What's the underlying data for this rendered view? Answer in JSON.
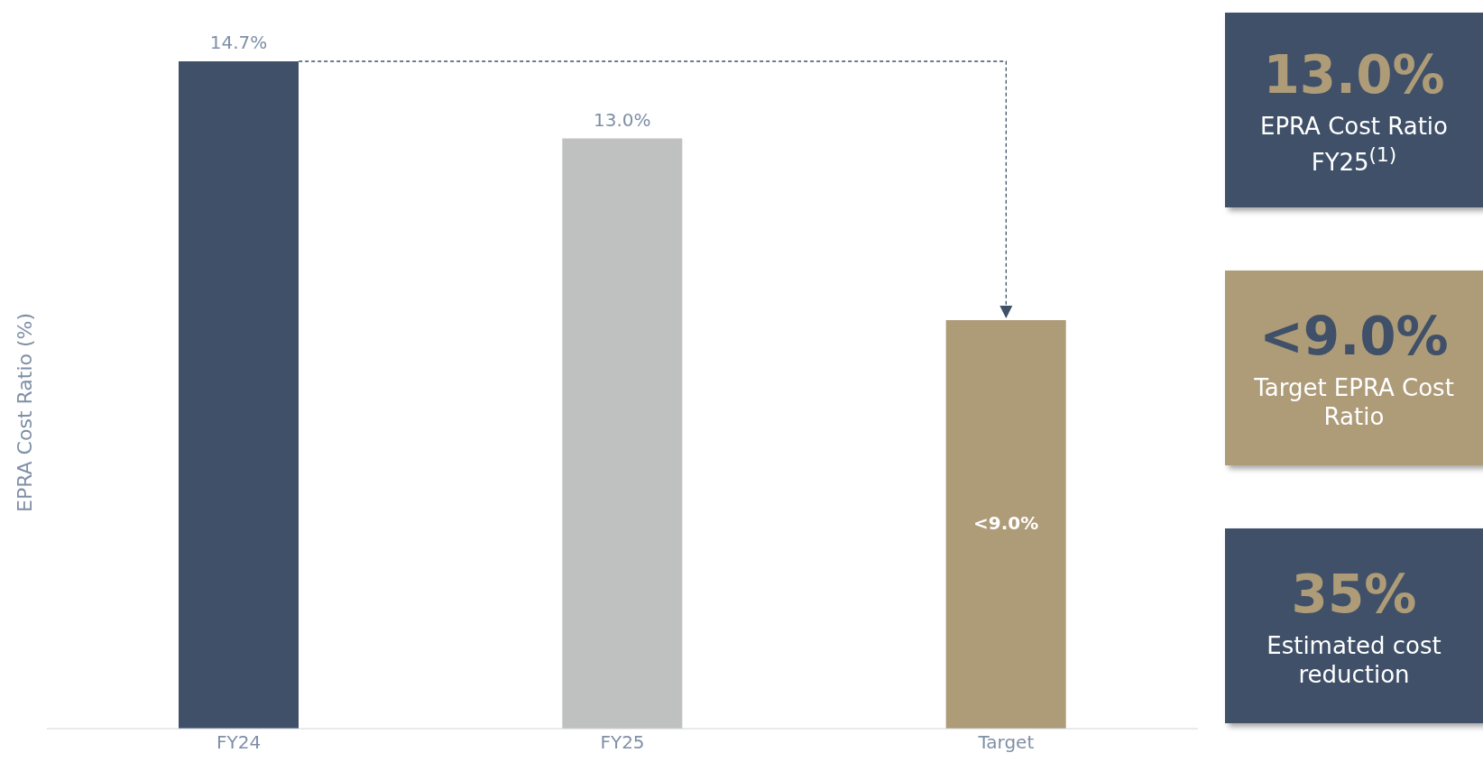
{
  "chart_data": [
    {
      "type": "bar",
      "ylabel": "EPRA Cost Ratio (%)",
      "categories": [
        "FY24",
        "FY25",
        "Target"
      ],
      "values": [
        14.7,
        13.0,
        9.0
      ],
      "colors": [
        "#3f5068",
        "#bfc1c0",
        "#ae9b78"
      ],
      "value_labels": [
        "14.7%",
        "13.0%",
        "<9.0%"
      ],
      "grid": false,
      "legend": false
    },
    {
      "type": "other",
      "annotations": [
        "13.0%",
        "EPRA Cost Ratio FY25$^{(1)}$",
        "<9.0%",
        "Target EPRA Cost Ratio",
        "35%",
        "Estimated cost reduction"
      ],
      "colors": [
        "#3f5068",
        "#ae9b78",
        "#3f5068"
      ]
    }
  ]
}
